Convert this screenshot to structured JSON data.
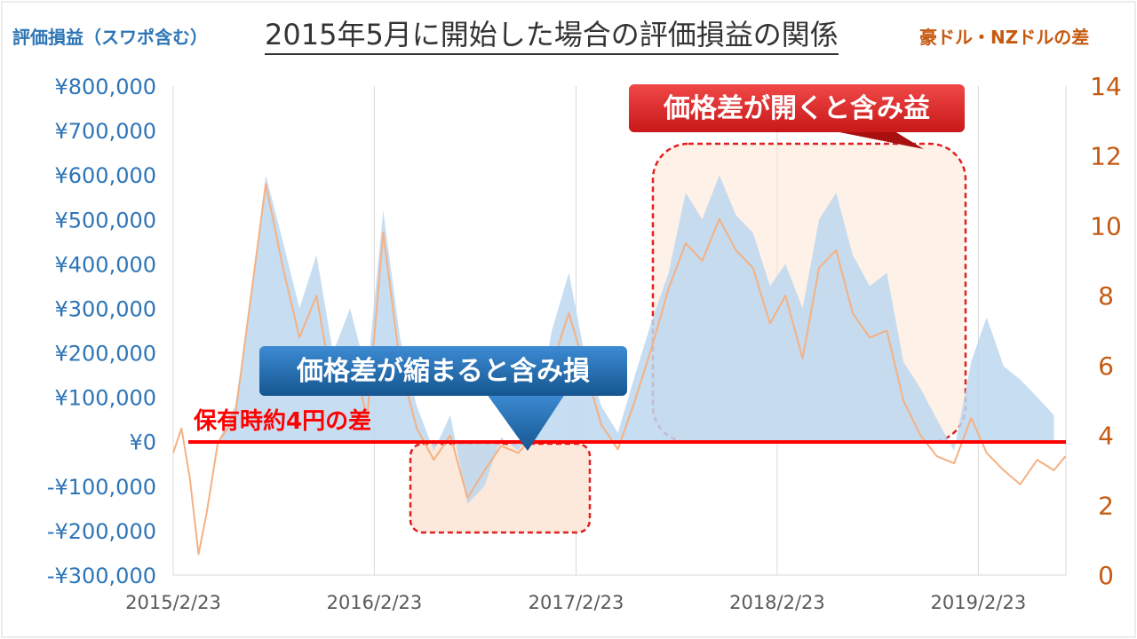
{
  "chart_title": "2015年5月に開始した場合の評価損益の関係",
  "left_axis_title": "評価損益（スワポ含む）",
  "right_axis_title": "豪ドル・NZドルの差",
  "annotations": {
    "baseline_label": "保有時約4円の差",
    "callout_loss": "価格差が縮まると含み損",
    "callout_gain": "価格差が開くと含み益"
  },
  "colors": {
    "profit_area": "#BDD7EE",
    "spread_line": "#F4B183",
    "baseline": "#FF0000",
    "callout_blue": "#1F6FB5",
    "callout_red": "#E02020",
    "highlight_fill": "#FBE5D6",
    "highlight_border": "#E02020"
  },
  "chart_data": {
    "type": "area",
    "x_ticks": [
      "2015/2/23",
      "2016/2/23",
      "2017/2/23",
      "2018/2/23",
      "2019/2/23"
    ],
    "x_range": [
      "2015/2/23",
      "2019/8/01"
    ],
    "y_left": {
      "range": [
        -300000,
        800000
      ],
      "ticks": [
        -300000,
        -200000,
        -100000,
        0,
        100000,
        200000,
        300000,
        400000,
        500000,
        600000,
        700000,
        800000
      ],
      "tick_labels": [
        "-¥300,000",
        "-¥200,000",
        "-¥100,000",
        "¥0",
        "¥100,000",
        "¥200,000",
        "¥300,000",
        "¥400,000",
        "¥500,000",
        "¥600,000",
        "¥700,000",
        "¥800,000"
      ]
    },
    "y_right": {
      "range": [
        0,
        14
      ],
      "ticks": [
        0,
        2,
        4,
        6,
        8,
        10,
        12,
        14
      ],
      "tick_labels": [
        "0",
        "2",
        "4",
        "6",
        "8",
        "10",
        "12",
        "14"
      ]
    },
    "grid": "vertical",
    "baseline_spread": 3.8,
    "series": [
      {
        "name": "評価損益（スワポ含む）",
        "kind": "area",
        "axis": "left",
        "dates": [
          "2015/5/15",
          "2015/6/15",
          "2015/7/10",
          "2015/8/10",
          "2015/9/10",
          "2015/10/10",
          "2015/11/10",
          "2015/12/10",
          "2016/1/10",
          "2016/2/10",
          "2016/3/10",
          "2016/4/10",
          "2016/5/10",
          "2016/6/10",
          "2016/7/10",
          "2016/8/10",
          "2016/9/10",
          "2016/10/10",
          "2016/11/10",
          "2016/12/10",
          "2017/1/10",
          "2017/2/10",
          "2017/3/10",
          "2017/4/10",
          "2017/5/10",
          "2017/6/10",
          "2017/7/10",
          "2017/8/10",
          "2017/9/10",
          "2017/10/10",
          "2017/11/10",
          "2017/12/10",
          "2018/1/10",
          "2018/2/10",
          "2018/3/10",
          "2018/4/10",
          "2018/5/10",
          "2018/6/10",
          "2018/7/10",
          "2018/8/10",
          "2018/9/10",
          "2018/10/10",
          "2018/11/10",
          "2018/12/10",
          "2019/1/10",
          "2019/2/10",
          "2019/3/10",
          "2019/4/10",
          "2019/5/10",
          "2019/6/10",
          "2019/7/10"
        ],
        "values": [
          0,
          80000,
          280000,
          600000,
          450000,
          300000,
          420000,
          200000,
          300000,
          150000,
          520000,
          230000,
          80000,
          -20000,
          60000,
          -140000,
          -100000,
          10000,
          -20000,
          40000,
          250000,
          380000,
          200000,
          80000,
          20000,
          150000,
          270000,
          380000,
          560000,
          500000,
          600000,
          510000,
          470000,
          350000,
          400000,
          300000,
          500000,
          560000,
          420000,
          350000,
          380000,
          180000,
          120000,
          50000,
          -20000,
          180000,
          280000,
          170000,
          140000,
          100000,
          60000
        ]
      },
      {
        "name": "豪ドル・NZドルの差",
        "kind": "line",
        "axis": "right",
        "dates": [
          "2015/2/23",
          "2015/3/10",
          "2015/3/25",
          "2015/4/10",
          "2015/4/25",
          "2015/5/15",
          "2015/6/15",
          "2015/7/10",
          "2015/8/10",
          "2015/9/10",
          "2015/10/10",
          "2015/11/10",
          "2015/12/10",
          "2016/1/10",
          "2016/2/10",
          "2016/3/10",
          "2016/4/10",
          "2016/5/10",
          "2016/6/10",
          "2016/7/10",
          "2016/8/10",
          "2016/9/10",
          "2016/10/10",
          "2016/11/10",
          "2016/12/10",
          "2017/1/10",
          "2017/2/10",
          "2017/3/10",
          "2017/4/10",
          "2017/5/10",
          "2017/6/10",
          "2017/7/10",
          "2017/8/10",
          "2017/9/10",
          "2017/10/10",
          "2017/11/10",
          "2017/12/10",
          "2018/1/10",
          "2018/2/10",
          "2018/3/10",
          "2018/4/10",
          "2018/5/10",
          "2018/6/10",
          "2018/7/10",
          "2018/8/10",
          "2018/9/10",
          "2018/10/10",
          "2018/11/10",
          "2018/12/10",
          "2019/1/10",
          "2019/2/10",
          "2019/3/10",
          "2019/4/10",
          "2019/5/10",
          "2019/6/10",
          "2019/7/10",
          "2019/7/31"
        ],
        "values": [
          3.5,
          4.2,
          2.8,
          0.6,
          1.8,
          3.8,
          4.5,
          7.5,
          11.2,
          8.8,
          6.8,
          8.0,
          5.3,
          6.5,
          4.5,
          9.8,
          6.0,
          4.2,
          3.3,
          4.0,
          2.2,
          3.0,
          3.7,
          3.5,
          4.0,
          6.0,
          7.5,
          6.0,
          4.3,
          3.6,
          5.0,
          6.5,
          8.2,
          9.5,
          9.0,
          10.2,
          9.3,
          8.8,
          7.2,
          8.0,
          6.2,
          8.8,
          9.3,
          7.5,
          6.8,
          7.0,
          5.0,
          4.0,
          3.4,
          3.2,
          4.5,
          3.5,
          3.0,
          2.6,
          3.3,
          3.0,
          3.4
        ]
      }
    ]
  }
}
